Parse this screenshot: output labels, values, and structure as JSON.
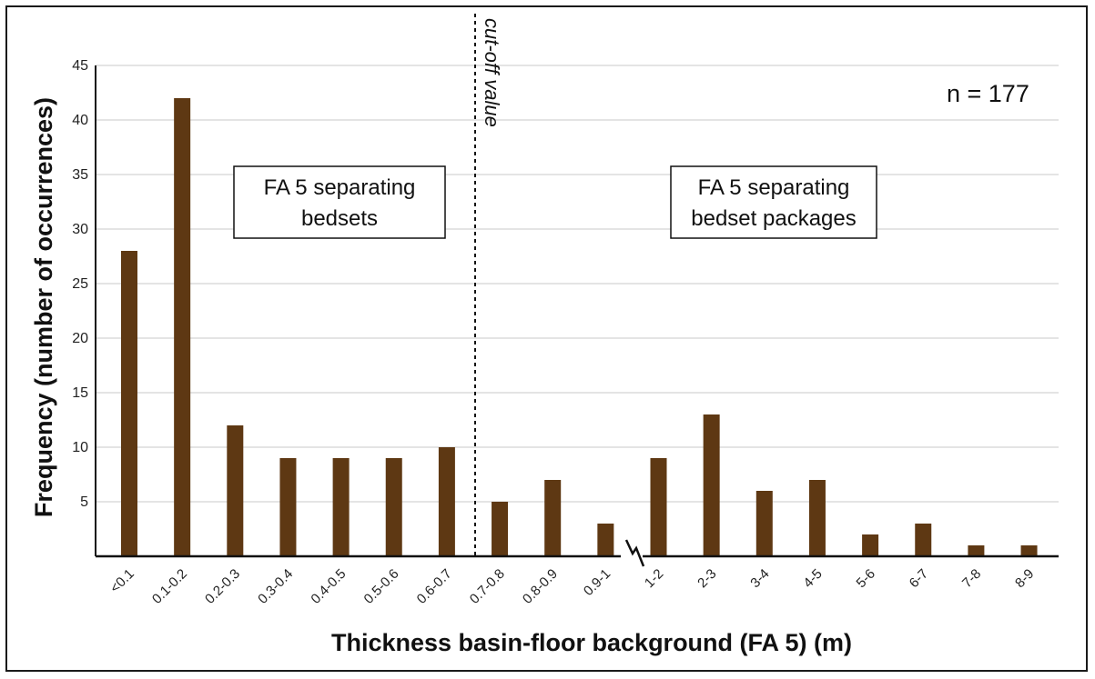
{
  "colors": {
    "bar": "#5e3813",
    "grid": "#c8c8c8",
    "axis": "#111111"
  },
  "annotations": {
    "count": "n = 177",
    "cutoff": "cut-off value",
    "box_left_line1": "FA 5 separating",
    "box_left_line2": "bedsets",
    "box_right_line1": "FA 5 separating",
    "box_right_line2": "bedset packages"
  },
  "chart_data": {
    "type": "bar",
    "xlabel": "Thickness basin-floor background (FA 5) (m)",
    "ylabel": "Frequency (number of occurrences)",
    "ylim": [
      0,
      45
    ],
    "yticks": [
      5,
      10,
      15,
      20,
      25,
      30,
      35,
      40,
      45
    ],
    "grid": true,
    "axis_break_after": "0.9-1",
    "cutoff_between": [
      "0.6-0.7",
      "0.7-0.8"
    ],
    "categories": [
      "<0.1",
      "0.1-0.2",
      "0.2-0.3",
      "0.3-0.4",
      "0.4-0.5",
      "0.5-0.6",
      "0.6-0.7",
      "0.7-0.8",
      "0.8-0.9",
      "0.9-1",
      "1-2",
      "2-3",
      "3-4",
      "4-5",
      "5-6",
      "6-7",
      "7-8",
      "8-9"
    ],
    "values": [
      28,
      42,
      12,
      9,
      9,
      9,
      10,
      5,
      7,
      3,
      9,
      13,
      6,
      7,
      2,
      3,
      1,
      1
    ]
  }
}
